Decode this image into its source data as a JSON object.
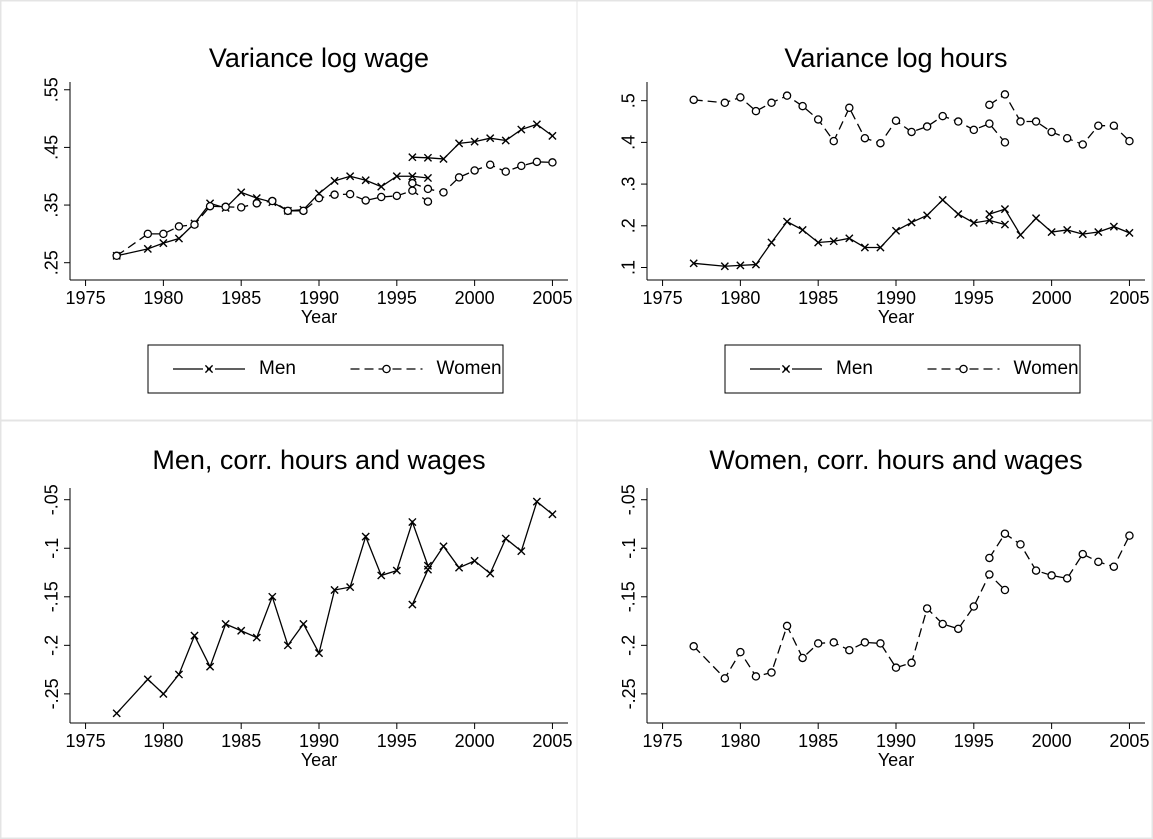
{
  "chart_data": [
    {
      "type": "line",
      "title": "Variance log wage",
      "x_label": "Year",
      "x": [
        1977,
        1979,
        1980,
        1981,
        1982,
        1983,
        1984,
        1985,
        1986,
        1987,
        1988,
        1989,
        1990,
        1991,
        1992,
        1993,
        1994,
        1995,
        1996,
        1997,
        null,
        1996,
        1997,
        1998,
        1999,
        2000,
        2001,
        2002,
        2003,
        2004,
        2005
      ],
      "xlim": [
        1974,
        2006
      ],
      "xticks": [
        1975,
        1980,
        1985,
        1990,
        1995,
        2000,
        2005
      ],
      "ylim": [
        0.22,
        0.56
      ],
      "yticks": [
        {
          "value": 0.25,
          "label": ".25"
        },
        {
          "value": 0.35,
          "label": ".35"
        },
        {
          "value": 0.45,
          "label": ".45"
        },
        {
          "value": 0.55,
          "label": ".55"
        }
      ],
      "legend": "bottom",
      "series": [
        {
          "name": "Men",
          "color": "#000000",
          "marker": "x",
          "line_style": "solid",
          "values": [
            0.262,
            0.274,
            0.284,
            0.292,
            0.318,
            0.353,
            0.345,
            0.372,
            0.362,
            0.355,
            0.34,
            0.342,
            0.37,
            0.392,
            0.4,
            0.393,
            0.382,
            0.4,
            0.4,
            0.397,
            null,
            0.433,
            0.432,
            0.43,
            0.457,
            0.46,
            0.466,
            0.462,
            0.481,
            0.49,
            0.47
          ]
        },
        {
          "name": "Women",
          "color": "#000000",
          "marker": "circle",
          "line_style": "dashed",
          "values": [
            0.262,
            0.3,
            0.3,
            0.313,
            0.316,
            0.348,
            0.347,
            0.346,
            0.353,
            0.357,
            0.34,
            0.34,
            0.362,
            0.368,
            0.369,
            0.358,
            0.364,
            0.366,
            0.375,
            0.356,
            null,
            0.388,
            0.378,
            0.372,
            0.398,
            0.41,
            0.42,
            0.408,
            0.418,
            0.425,
            0.424
          ]
        }
      ]
    },
    {
      "type": "line",
      "title": "Variance log hours",
      "x_label": "Year",
      "x": [
        1977,
        1979,
        1980,
        1981,
        1982,
        1983,
        1984,
        1985,
        1986,
        1987,
        1988,
        1989,
        1990,
        1991,
        1992,
        1993,
        1994,
        1995,
        1996,
        1997,
        null,
        1996,
        1997,
        1998,
        1999,
        2000,
        2001,
        2002,
        2003,
        2004,
        2005
      ],
      "xlim": [
        1974,
        2006
      ],
      "xticks": [
        1975,
        1980,
        1985,
        1990,
        1995,
        2000,
        2005
      ],
      "ylim": [
        0.07,
        0.54
      ],
      "yticks": [
        {
          "value": 0.1,
          "label": ".1"
        },
        {
          "value": 0.2,
          "label": ".2"
        },
        {
          "value": 0.3,
          "label": ".3"
        },
        {
          "value": 0.4,
          "label": ".4"
        },
        {
          "value": 0.5,
          "label": ".5"
        }
      ],
      "legend": "bottom",
      "series": [
        {
          "name": "Men",
          "color": "#000000",
          "marker": "x",
          "line_style": "solid",
          "values": [
            0.11,
            0.103,
            0.105,
            0.107,
            0.16,
            0.21,
            0.19,
            0.16,
            0.163,
            0.17,
            0.148,
            0.148,
            0.188,
            0.208,
            0.225,
            0.262,
            0.228,
            0.207,
            0.213,
            0.203,
            null,
            0.228,
            0.24,
            0.178,
            0.218,
            0.185,
            0.19,
            0.18,
            0.185,
            0.198,
            0.183
          ]
        },
        {
          "name": "Women",
          "color": "#000000",
          "marker": "circle",
          "line_style": "dashed",
          "values": [
            0.502,
            0.495,
            0.508,
            0.475,
            0.495,
            0.512,
            0.487,
            0.455,
            0.403,
            0.483,
            0.41,
            0.398,
            0.452,
            0.425,
            0.438,
            0.463,
            0.45,
            0.43,
            0.445,
            0.4,
            null,
            0.49,
            0.515,
            0.45,
            0.45,
            0.425,
            0.41,
            0.395,
            0.44,
            0.44,
            0.403
          ]
        }
      ]
    },
    {
      "type": "line",
      "title": "Men, corr. hours and wages",
      "x_label": "Year",
      "x": [
        1977,
        1979,
        1980,
        1981,
        1982,
        1983,
        1984,
        1985,
        1986,
        1987,
        1988,
        1989,
        1990,
        1991,
        1992,
        1993,
        1994,
        1995,
        1996,
        1997,
        null,
        1996,
        1997,
        1998,
        1999,
        2000,
        2001,
        2002,
        2003,
        2004,
        2005
      ],
      "xlim": [
        1974,
        2006
      ],
      "xticks": [
        1975,
        1980,
        1985,
        1990,
        1995,
        2000,
        2005
      ],
      "ylim": [
        -0.28,
        -0.04
      ],
      "yticks": [
        {
          "value": -0.25,
          "label": "-.25"
        },
        {
          "value": -0.2,
          "label": "-.2"
        },
        {
          "value": -0.15,
          "label": "-.15"
        },
        {
          "value": -0.1,
          "label": "-.1"
        },
        {
          "value": -0.05,
          "label": "-.05"
        }
      ],
      "series": [
        {
          "color": "#000000",
          "marker": "x",
          "line_style": "solid",
          "values": [
            -0.27,
            -0.235,
            -0.25,
            -0.23,
            -0.19,
            -0.222,
            -0.178,
            -0.185,
            -0.192,
            -0.15,
            -0.2,
            -0.178,
            -0.208,
            -0.143,
            -0.14,
            -0.088,
            -0.128,
            -0.123,
            -0.073,
            -0.118,
            null,
            -0.158,
            -0.122,
            -0.098,
            -0.12,
            -0.113,
            -0.126,
            -0.09,
            -0.103,
            -0.052,
            -0.065
          ]
        }
      ]
    },
    {
      "type": "line",
      "title": "Women, corr. hours and wages",
      "x_label": "Year",
      "x": [
        1977,
        1979,
        1980,
        1981,
        1982,
        1983,
        1984,
        1985,
        1986,
        1987,
        1988,
        1989,
        1990,
        1991,
        1992,
        1993,
        1994,
        1995,
        1996,
        1997,
        null,
        1996,
        1997,
        1998,
        1999,
        2000,
        2001,
        2002,
        2003,
        2004,
        2005
      ],
      "xlim": [
        1974,
        2006
      ],
      "xticks": [
        1975,
        1980,
        1985,
        1990,
        1995,
        2000,
        2005
      ],
      "ylim": [
        -0.28,
        -0.04
      ],
      "yticks": [
        {
          "value": -0.25,
          "label": "-.25"
        },
        {
          "value": -0.2,
          "label": "-.2"
        },
        {
          "value": -0.15,
          "label": "-.15"
        },
        {
          "value": -0.1,
          "label": "-.1"
        },
        {
          "value": -0.05,
          "label": "-.05"
        }
      ],
      "series": [
        {
          "color": "#000000",
          "marker": "circle",
          "line_style": "dashed",
          "values": [
            -0.201,
            -0.234,
            -0.207,
            -0.232,
            -0.228,
            -0.18,
            -0.213,
            -0.198,
            -0.197,
            -0.205,
            -0.197,
            -0.198,
            -0.223,
            -0.218,
            -0.162,
            -0.178,
            -0.183,
            -0.16,
            -0.127,
            -0.143,
            null,
            -0.11,
            -0.085,
            -0.096,
            -0.123,
            -0.128,
            -0.131,
            -0.106,
            -0.114,
            -0.119,
            -0.087
          ]
        }
      ]
    }
  ]
}
